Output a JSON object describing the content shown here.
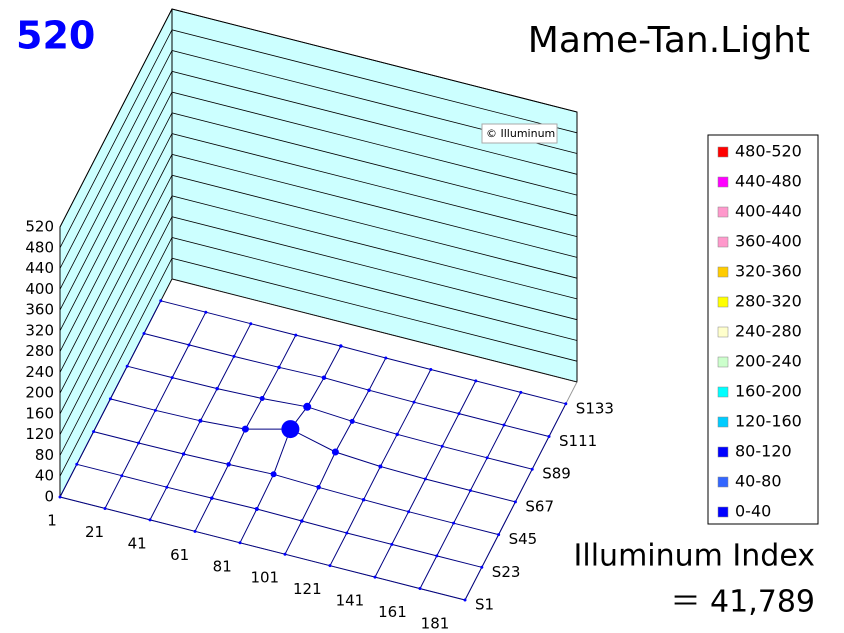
{
  "chart_data": {
    "type": "surface",
    "title": "Mame-Tan.Light",
    "corner_label": "520",
    "watermark": "© Illuminum",
    "x": [
      1,
      21,
      41,
      61,
      81,
      101,
      121,
      141,
      161,
      181
    ],
    "xlim": [
      1,
      181
    ],
    "zlim": [
      0,
      520
    ],
    "zticks": [
      0,
      40,
      80,
      120,
      160,
      200,
      240,
      280,
      320,
      360,
      400,
      440,
      480,
      520
    ],
    "mesh_color": "#000080",
    "wall_color": "#ccffff",
    "series": [
      {
        "name": "S1",
        "values": [
          0,
          0,
          0,
          0,
          0,
          0,
          0,
          0,
          0,
          0
        ]
      },
      {
        "name": "S23",
        "values": [
          0,
          0,
          0,
          1,
          2,
          1,
          0,
          0,
          0,
          0
        ]
      },
      {
        "name": "S45",
        "values": [
          0,
          0,
          1,
          3,
          6,
          3,
          1,
          0,
          0,
          0
        ]
      },
      {
        "name": "S67",
        "values": [
          0,
          0,
          2,
          8,
          30,
          8,
          2,
          0,
          0,
          0
        ]
      },
      {
        "name": "S89",
        "values": [
          0,
          0,
          1,
          4,
          10,
          4,
          1,
          0,
          0,
          0
        ]
      },
      {
        "name": "S111",
        "values": [
          0,
          0,
          0,
          1,
          3,
          1,
          0,
          0,
          0,
          0
        ]
      },
      {
        "name": "S133",
        "values": [
          0,
          0,
          0,
          0,
          1,
          0,
          0,
          0,
          0,
          0
        ]
      }
    ],
    "legend": [
      {
        "name": "480-520",
        "color": "#ff0000",
        "min": 480
      },
      {
        "name": "440-480",
        "color": "#ff00ff",
        "min": 440
      },
      {
        "name": "400-440",
        "color": "#ff99cc",
        "min": 400
      },
      {
        "name": "360-400",
        "color": "#ff99cc",
        "min": 360
      },
      {
        "name": "320-360",
        "color": "#ffcc00",
        "min": 320
      },
      {
        "name": "280-320",
        "color": "#ffff00",
        "min": 280
      },
      {
        "name": "240-280",
        "color": "#ffffcc",
        "min": 240
      },
      {
        "name": "200-240",
        "color": "#ccffcc",
        "min": 200
      },
      {
        "name": "160-200",
        "color": "#00ffff",
        "min": 160
      },
      {
        "name": "120-160",
        "color": "#00ccff",
        "min": 120
      },
      {
        "name": "80-120",
        "color": "#0000ff",
        "min": 80
      },
      {
        "name": "40-80",
        "color": "#3366ff",
        "min": 40
      },
      {
        "name": "0-40",
        "color": "#0000ff",
        "min": 0
      }
    ],
    "index_title": "Illuminum Index",
    "index_text": "＝ 41,789"
  }
}
